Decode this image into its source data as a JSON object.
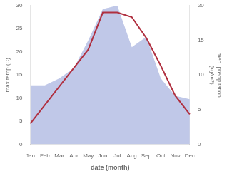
{
  "chart_data": {
    "type": "line",
    "categories": [
      "Jan",
      "Feb",
      "Mar",
      "Apr",
      "May",
      "Jun",
      "Jul",
      "Aug",
      "Sep",
      "Oct",
      "Nov",
      "Dec"
    ],
    "series": [
      {
        "name": "med. precipitation",
        "type": "area",
        "axis": "y2",
        "color": "#c0c8e8",
        "values": [
          8.5,
          8.5,
          9.5,
          11.0,
          15.0,
          19.5,
          20.0,
          14.0,
          15.5,
          9.5,
          7.0,
          6.5
        ]
      },
      {
        "name": "max temp",
        "type": "line",
        "color": "#b03040",
        "values": [
          4.5,
          8.5,
          12.5,
          16.5,
          20.5,
          28.5,
          28.5,
          27.5,
          23.0,
          17.0,
          10.5,
          6.5
        ]
      }
    ],
    "xlabel": "date (month)",
    "ylabel": "max temp (C)",
    "y2label": "med. precipitation\n(kg/m2)",
    "ylim": [
      0,
      30
    ],
    "yticks": [
      0,
      5,
      10,
      15,
      20,
      25,
      30
    ],
    "y2lim": [
      0,
      20
    ],
    "y2ticks": [
      0,
      5,
      10,
      15,
      20
    ],
    "grid": false
  }
}
